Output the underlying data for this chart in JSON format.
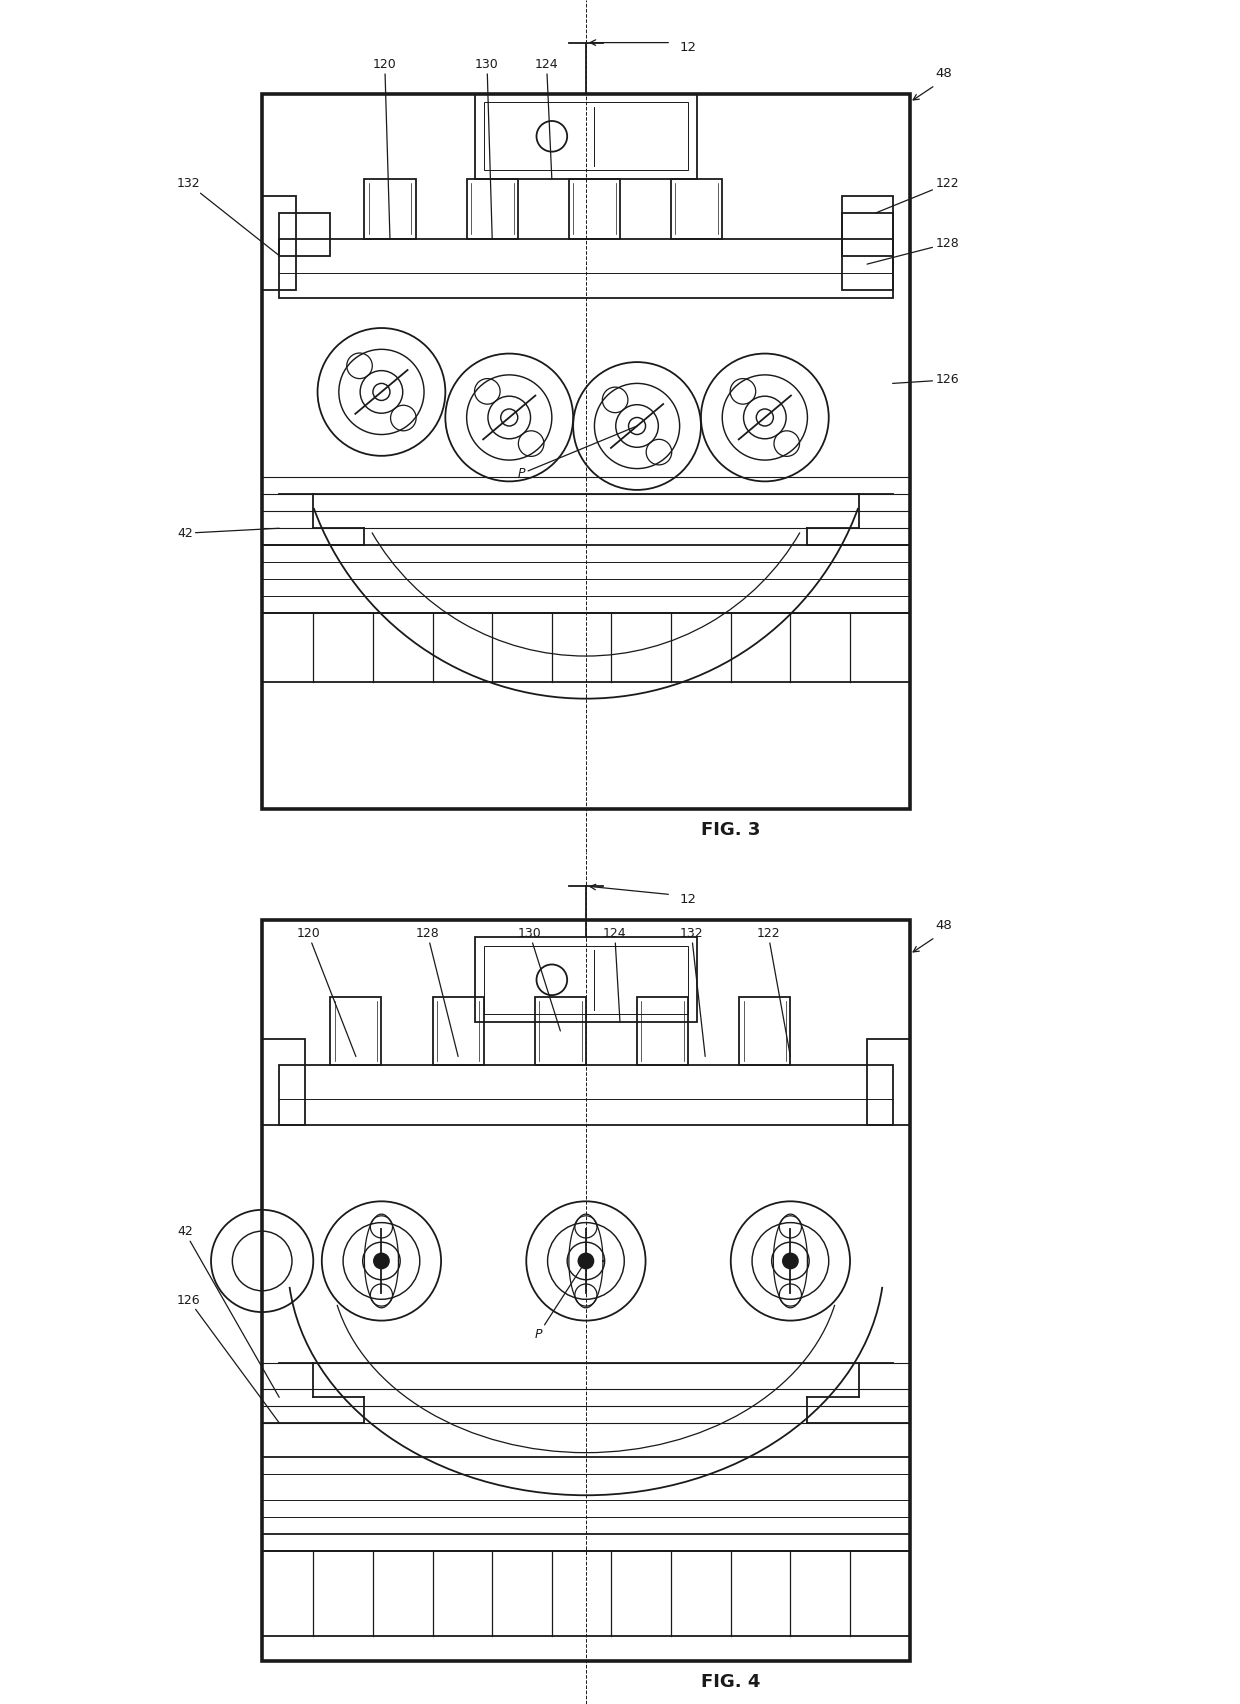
{
  "background_color": "#ffffff",
  "line_color": "#1a1a1a",
  "fig3_title": "FIG. 3",
  "fig4_title": "FIG. 4",
  "page_width": 12.4,
  "page_height": 17.04,
  "dpi": 100
}
